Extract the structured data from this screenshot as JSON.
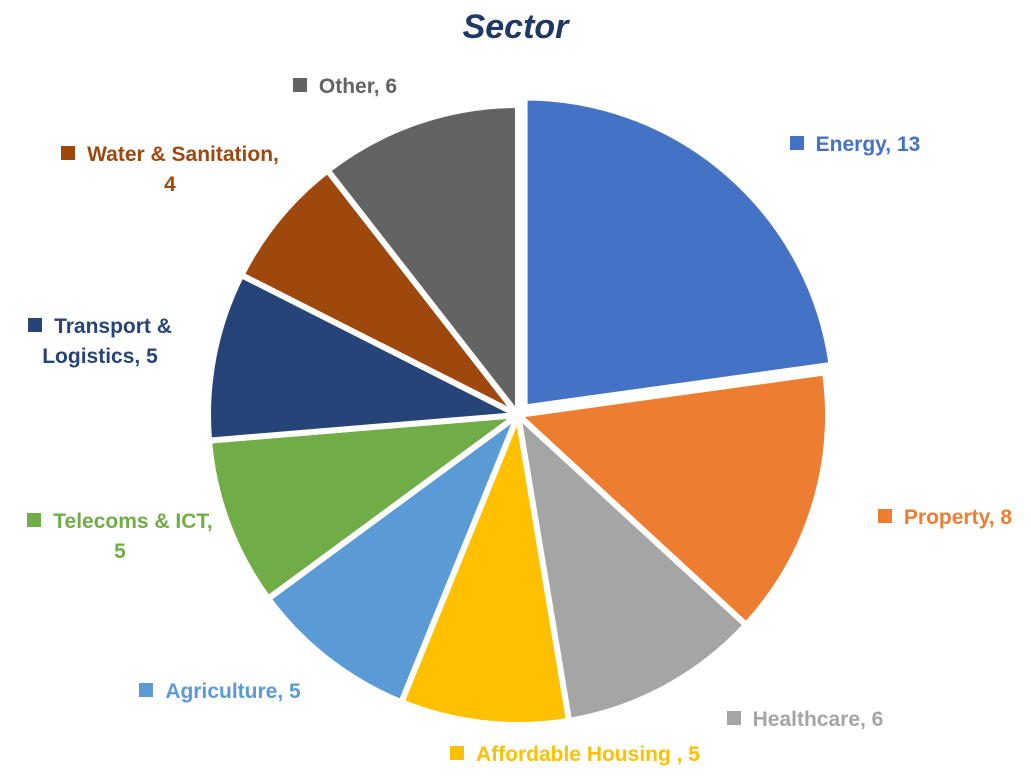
{
  "chart_data": {
    "type": "pie",
    "title": "Sector",
    "values": [
      13,
      8,
      6,
      5,
      5,
      5,
      5,
      4,
      6
    ],
    "value_labels": [
      "Energy, 13",
      "Property, 8",
      "Healthcare, 6",
      "Affordable Housing , 5",
      "Agriculture, 5",
      "Telecoms & ICT, 5",
      "Transport & Logistics, 5",
      "Water & Sanitation, 4",
      "Other, 6"
    ],
    "colors": [
      "#4472c4",
      "#ed7d31",
      "#a5a5a5",
      "#ffc000",
      "#5b9bd5",
      "#70ad47",
      "#264478",
      "#9e480e",
      "#636363"
    ]
  }
}
